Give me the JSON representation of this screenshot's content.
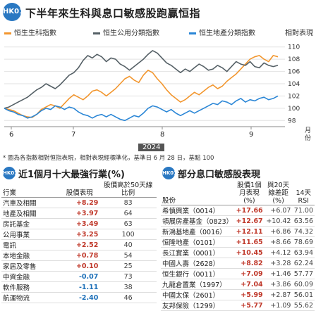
{
  "header": {
    "logo_text": "HK01",
    "title": "下半年來生科與息口敏感股跑贏恒指"
  },
  "chart_data": {
    "type": "line",
    "title": "下半年來生科與息口敏感股跑贏恒指",
    "unit_label": "相對表現",
    "x_unit": "月份",
    "year_label": "2024",
    "x_ticks": [
      "6",
      "7",
      "8",
      "9"
    ],
    "ylim": [
      97,
      111
    ],
    "y_ticks": [
      98,
      100,
      102,
      104,
      106,
      108,
      110
    ],
    "series": [
      {
        "name": "恒生生科指數",
        "color": "#f2962e",
        "values": [
          100,
          99.8,
          99.6,
          99.2,
          98.8,
          98.6,
          98.5,
          99,
          99.8,
          100.2,
          100.6,
          100.4,
          100,
          100.8,
          101.6,
          102.2,
          101.8,
          101.4,
          102,
          102.8,
          103,
          102.6,
          102,
          102.6,
          103.2,
          104,
          104.8,
          105.2,
          104.6,
          104.2,
          105.4,
          106.2,
          105.8,
          104.8,
          104,
          103,
          102.2,
          101.6,
          101,
          101.4,
          102,
          102.6,
          102.2,
          102.8,
          103.4,
          103.8,
          103.2,
          103.6,
          104.4,
          105,
          105.6,
          106.4,
          107.2,
          108,
          108.4,
          108.6,
          108,
          107.6,
          108.6,
          108.4
        ]
      },
      {
        "name": "恒生公用分類指數",
        "color": "#556066",
        "values": [
          100,
          100.2,
          100.6,
          101,
          101.4,
          101.8,
          102.4,
          103,
          103.4,
          104,
          103.6,
          103.2,
          103.8,
          104.6,
          105.4,
          105.8,
          106.6,
          107.8,
          108.6,
          108.2,
          108.8,
          108.4,
          107.6,
          108.2,
          108,
          107.2,
          106.8,
          106.2,
          106.8,
          107.4,
          108,
          108.8,
          109.4,
          109,
          108.2,
          107.4,
          107,
          106.4,
          105.8,
          106.4,
          106,
          106.6,
          107.2,
          106.8,
          106.2,
          106.4,
          107,
          106.6,
          106,
          106.8,
          107.6,
          107.2,
          107,
          107.6,
          106.8,
          106.6,
          107.4,
          107,
          106.8,
          107
        ]
      },
      {
        "name": "恒生地產分類指數",
        "color": "#2a86d6",
        "values": [
          100,
          99.6,
          99.4,
          99,
          98.8,
          98.4,
          98.6,
          99,
          99.6,
          100,
          99.8,
          100.4,
          100.2,
          99.8,
          100.2,
          100,
          99.4,
          99,
          98.8,
          98.4,
          98.8,
          99,
          98.6,
          99,
          98.6,
          98.2,
          98,
          98.4,
          98.8,
          98.6,
          99.2,
          100,
          100.4,
          100.2,
          99.8,
          99.4,
          99.8,
          99.2,
          98.8,
          99.2,
          99.6,
          99.2,
          99.6,
          100,
          100.4,
          100.8,
          100.6,
          101.2,
          101,
          100.6,
          101.2,
          101.6,
          101,
          101.4,
          101.2,
          101.6,
          101.8,
          101.4,
          101.6,
          102
        ]
      }
    ]
  },
  "note": "* 圖為各指數相對恒指表現，相對表現經標準化，基準日 6 月 28 日，基點 100",
  "sections": {
    "industries": {
      "icon_text": "HK01",
      "title": "近1個月十大最強行業(%)",
      "columns": [
        "行業",
        "股價表現",
        "股價高於50天線比例"
      ],
      "rows": [
        {
          "name": "汽車及相關",
          "perf": "+8.29",
          "ratio": "83"
        },
        {
          "name": "地產及相關",
          "perf": "+3.97",
          "ratio": "64"
        },
        {
          "name": "房託基金",
          "perf": "+3.49",
          "ratio": "63"
        },
        {
          "name": "公用事業",
          "perf": "+3.25",
          "ratio": "100"
        },
        {
          "name": "電訊",
          "perf": "+2.52",
          "ratio": "40"
        },
        {
          "name": "本地金融",
          "perf": "+0.78",
          "ratio": "54"
        },
        {
          "name": "家居及零售",
          "perf": "+0.10",
          "ratio": "25"
        },
        {
          "name": "中資金融",
          "perf": "-0.07",
          "ratio": "73"
        },
        {
          "name": "軟件服務",
          "perf": "-1.11",
          "ratio": "38"
        },
        {
          "name": "航運物流",
          "perf": "-2.40",
          "ratio": "46"
        }
      ]
    },
    "stocks": {
      "icon_text": "HK01",
      "title": "部分息口敏感股表現",
      "columns": [
        "股份",
        "股價1個月表現(%)",
        "與20天線差距(%)",
        "14天RSI"
      ],
      "rows": [
        {
          "name": "希慎興業（0014）",
          "perf": "+17.66",
          "gap": "+6.07",
          "rsi": "71.00"
        },
        {
          "name": "領展房產基金（0823）",
          "perf": "+12.67",
          "gap": "+10.42",
          "rsi": "63.56"
        },
        {
          "name": "新鴻基地產（0016）",
          "perf": "+12.11",
          "gap": "+6.86",
          "rsi": "74.32"
        },
        {
          "name": "恒隆地產（0101）",
          "perf": "+11.65",
          "gap": "+8.66",
          "rsi": "78.69"
        },
        {
          "name": "長江實業（0001）",
          "perf": "+10.45",
          "gap": "+4.12",
          "rsi": "63.94"
        },
        {
          "name": "中國人壽（2628）",
          "perf": "+8.82",
          "gap": "+3.28",
          "rsi": "62.24"
        },
        {
          "name": "恒生銀行（0011）",
          "perf": "+7.09",
          "gap": "+1.46",
          "rsi": "57.77"
        },
        {
          "name": "九龍倉置業（1997）",
          "perf": "+7.04",
          "gap": "+3.86",
          "rsi": "60.09"
        },
        {
          "name": "中國太保（2601）",
          "perf": "+5.99",
          "gap": "+2.87",
          "rsi": "56.01"
        },
        {
          "name": "友邦保險（1299）",
          "perf": "+5.77",
          "gap": "+1.09",
          "rsi": "55.62"
        }
      ]
    }
  }
}
